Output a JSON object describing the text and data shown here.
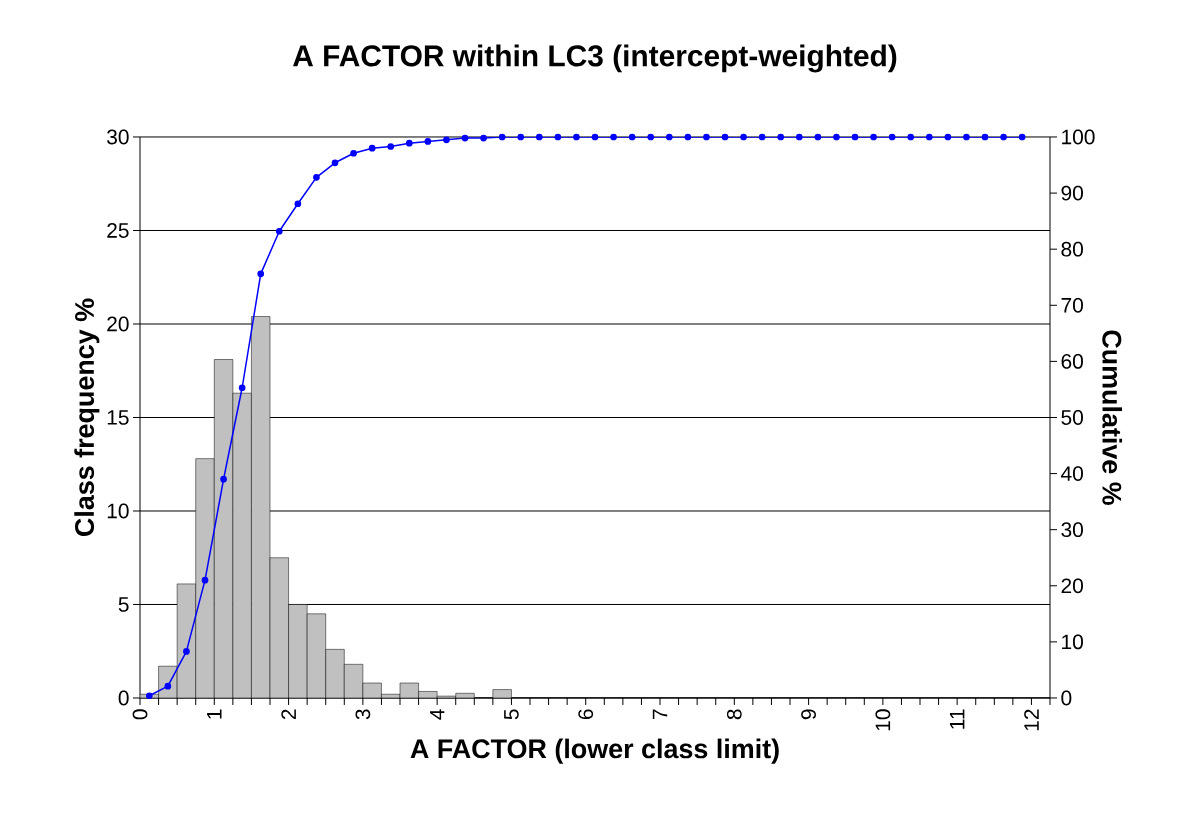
{
  "chart_data": {
    "type": "histogram",
    "title": "A FACTOR within LC3 (intercept-weighted)",
    "xlabel": "A FACTOR (lower class limit)",
    "ylabel": "Class frequency %",
    "y2label": "Cumulative %",
    "bins": [
      0,
      0.25,
      0.5,
      0.75,
      1,
      1.25,
      1.5,
      1.75,
      2,
      2.25,
      2.5,
      2.75,
      3,
      3.25,
      3.5,
      3.75,
      4,
      4.25,
      4.5,
      4.75,
      5,
      5.25,
      5.5,
      5.75,
      6,
      6.25,
      6.5,
      6.75,
      7,
      7.25,
      7.5,
      7.75,
      8,
      8.25,
      8.5,
      8.75,
      9,
      9.25,
      9.5,
      9.75,
      10,
      10.25,
      10.5,
      10.75,
      11,
      11.25,
      11.5,
      11.75,
      12,
      12.25
    ],
    "values": [
      0.2,
      1.7,
      6.1,
      12.8,
      18.1,
      16.3,
      20.4,
      7.5,
      5.0,
      4.5,
      2.6,
      1.8,
      0.8,
      0.2,
      0.8,
      0.35,
      0.1,
      0.25,
      0,
      0.45,
      0,
      0,
      0,
      0,
      0,
      0,
      0,
      0,
      0,
      0,
      0,
      0,
      0,
      0,
      0,
      0,
      0,
      0,
      0,
      0,
      0,
      0,
      0,
      0,
      0,
      0,
      0,
      0,
      0
    ],
    "color": "#c0c0c0",
    "series": [
      {
        "type": "line",
        "axis": "y2",
        "color": "#0000ff",
        "marker": "circle",
        "x": [
          0.125,
          0.375,
          0.625,
          0.875,
          1.125,
          1.375,
          1.625,
          1.875,
          2.125,
          2.375,
          2.625,
          2.875,
          3.125,
          3.375,
          3.625,
          3.875,
          4.125,
          4.375,
          4.625,
          4.875,
          5.125,
          5.375,
          5.625,
          5.875,
          6.125,
          6.375,
          6.625,
          6.875,
          7.125,
          7.375,
          7.625,
          7.875,
          8.125,
          8.375,
          8.625,
          8.875,
          9.125,
          9.375,
          9.625,
          9.875,
          10.125,
          10.375,
          10.625,
          10.875,
          11.125,
          11.375,
          11.625,
          11.875
        ],
        "values": [
          0.4,
          2.1,
          8.3,
          21.0,
          39.0,
          55.3,
          75.6,
          83.2,
          88.1,
          92.8,
          95.4,
          97.1,
          98.0,
          98.3,
          98.9,
          99.2,
          99.5,
          99.8,
          99.8,
          100,
          100,
          100,
          100,
          100,
          100,
          100,
          100,
          100,
          100,
          100,
          100,
          100,
          100,
          100,
          100,
          100,
          100,
          100,
          100,
          100,
          100,
          100,
          100,
          100,
          100,
          100,
          100,
          100
        ]
      }
    ],
    "xlim": [
      0,
      12.25
    ],
    "xticks": [
      0,
      {
        "value": 0.25,
        "label": null
      },
      {
        "value": 0.5,
        "label": null
      },
      {
        "value": 0.75,
        "label": null
      },
      1,
      {
        "value": 1.25,
        "label": null
      },
      {
        "value": 1.5,
        "label": null
      },
      {
        "value": 1.75,
        "label": null
      },
      2,
      {
        "value": 2.25,
        "label": null
      },
      {
        "value": 2.5,
        "label": null
      },
      {
        "value": 2.75,
        "label": null
      },
      3,
      {
        "value": 3.25,
        "label": null
      },
      {
        "value": 3.5,
        "label": null
      },
      {
        "value": 3.75,
        "label": null
      },
      4,
      {
        "value": 4.25,
        "label": null
      },
      {
        "value": 4.5,
        "label": null
      },
      {
        "value": 4.75,
        "label": null
      },
      5,
      {
        "value": 5.25,
        "label": null
      },
      {
        "value": 5.5,
        "label": null
      },
      {
        "value": 5.75,
        "label": null
      },
      6,
      {
        "value": 6.25,
        "label": null
      },
      {
        "value": 6.5,
        "label": null
      },
      {
        "value": 6.75,
        "label": null
      },
      7,
      {
        "value": 7.25,
        "label": null
      },
      {
        "value": 7.5,
        "label": null
      },
      {
        "value": 7.75,
        "label": null
      },
      8,
      {
        "value": 8.25,
        "label": null
      },
      {
        "value": 8.5,
        "label": null
      },
      {
        "value": 8.75,
        "label": null
      },
      9,
      {
        "value": 9.25,
        "label": null
      },
      {
        "value": 9.5,
        "label": null
      },
      {
        "value": 9.75,
        "label": null
      },
      10,
      {
        "value": 10.25,
        "label": null
      },
      {
        "value": 10.5,
        "label": null
      },
      {
        "value": 10.75,
        "label": null
      },
      11,
      {
        "value": 11.25,
        "label": null
      },
      {
        "value": 11.5,
        "label": null
      },
      {
        "value": 11.75,
        "label": null
      },
      12,
      {
        "value": 12.25,
        "label": null
      }
    ],
    "ylim": [
      0,
      30
    ],
    "yticks": [
      0,
      5,
      10,
      15,
      20,
      25,
      30
    ],
    "y2lim": [
      0,
      100
    ],
    "y2ticks": [
      0,
      10,
      20,
      30,
      40,
      50,
      60,
      70,
      80,
      90,
      100
    ],
    "grid": "y"
  }
}
